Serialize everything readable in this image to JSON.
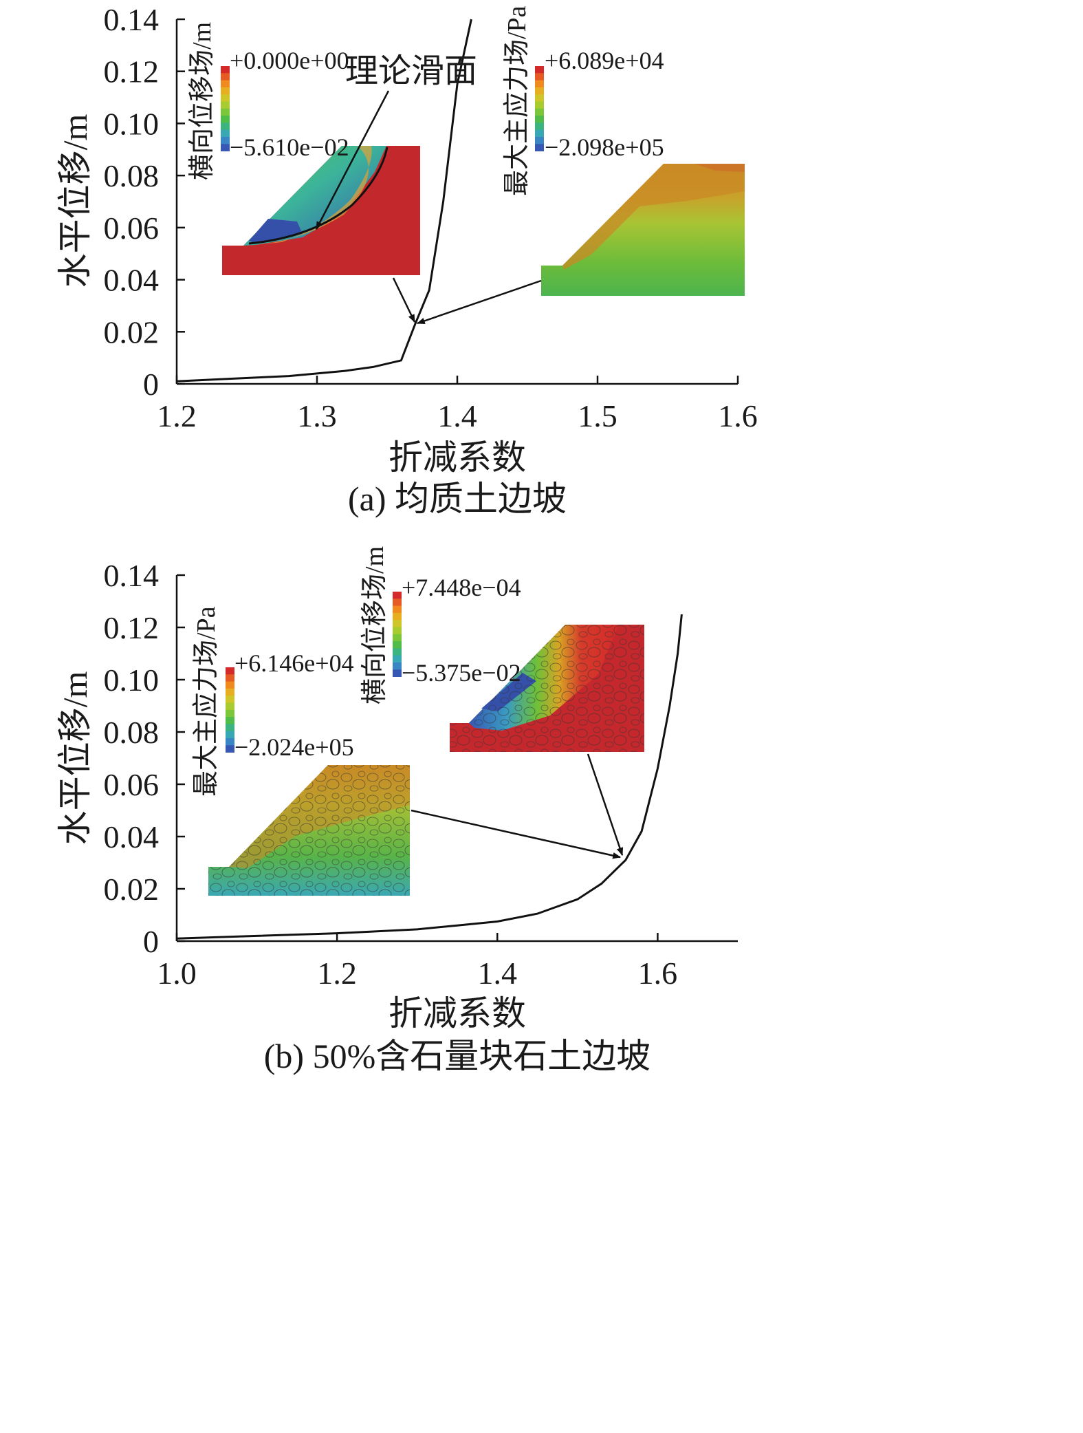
{
  "chart_data": [
    {
      "type": "line",
      "id": "a",
      "caption": "(a) 均质土边坡",
      "xlabel": "折减系数",
      "ylabel": "水平位移/m",
      "xlim": [
        1.2,
        1.6
      ],
      "ylim": [
        0,
        0.14
      ],
      "xticks": [
        1.2,
        1.3,
        1.4,
        1.5,
        1.6
      ],
      "xtick_labels": [
        "1.2",
        "1.3",
        "1.4",
        "1.5",
        "1.6"
      ],
      "yticks": [
        0,
        0.02,
        0.04,
        0.06,
        0.08,
        0.1,
        0.12,
        0.14
      ],
      "ytick_labels": [
        "0",
        "0.02",
        "0.04",
        "0.06",
        "0.08",
        "0.10",
        "0.12",
        "0.14"
      ],
      "x": [
        1.2,
        1.24,
        1.28,
        1.3,
        1.32,
        1.34,
        1.36,
        1.37,
        1.38,
        1.39,
        1.4,
        1.41
      ],
      "y": [
        0.001,
        0.002,
        0.003,
        0.004,
        0.005,
        0.0065,
        0.009,
        0.023,
        0.036,
        0.07,
        0.115,
        0.14
      ],
      "insets": [
        {
          "field": "横向位移场/m",
          "max_label": "+0.000e+00",
          "min_label": "−5.610e−02",
          "annotation": "理论滑面"
        },
        {
          "field": "最大主应力场/Pa",
          "max_label": "+6.089e+04",
          "min_label": "−2.098e+05"
        }
      ]
    },
    {
      "type": "line",
      "id": "b",
      "caption": "(b) 50%含石量块石土边坡",
      "xlabel": "折减系数",
      "ylabel": "水平位移/m",
      "xlim": [
        1.0,
        1.7
      ],
      "ylim": [
        0,
        0.14
      ],
      "xticks": [
        1.0,
        1.2,
        1.4,
        1.6
      ],
      "xtick_labels": [
        "1.0",
        "1.2",
        "1.4",
        "1.6"
      ],
      "yticks": [
        0,
        0.02,
        0.04,
        0.06,
        0.08,
        0.1,
        0.12,
        0.14
      ],
      "ytick_labels": [
        "0",
        "0.02",
        "0.04",
        "0.06",
        "0.08",
        "0.10",
        "0.12",
        "0.14"
      ],
      "x": [
        1.0,
        1.1,
        1.2,
        1.3,
        1.35,
        1.4,
        1.45,
        1.5,
        1.53,
        1.56,
        1.58,
        1.6,
        1.615,
        1.625,
        1.63
      ],
      "y": [
        0.001,
        0.002,
        0.003,
        0.0045,
        0.006,
        0.0075,
        0.0105,
        0.016,
        0.022,
        0.031,
        0.042,
        0.066,
        0.09,
        0.11,
        0.125
      ],
      "insets": [
        {
          "field": "最大主应力场/Pa",
          "max_label": "+6.146e+04",
          "min_label": "−2.024e+05"
        },
        {
          "field": "横向位移场/m",
          "max_label": "+7.448e−04",
          "min_label": "−5.375e−02"
        }
      ]
    }
  ],
  "colorbar": [
    "#d42a2a",
    "#e65a24",
    "#f08a1e",
    "#e8ae22",
    "#cfc62a",
    "#a8cc30",
    "#7cc63a",
    "#50bc4a",
    "#3cb480",
    "#38a8b4",
    "#3a86c4",
    "#3658b4"
  ]
}
